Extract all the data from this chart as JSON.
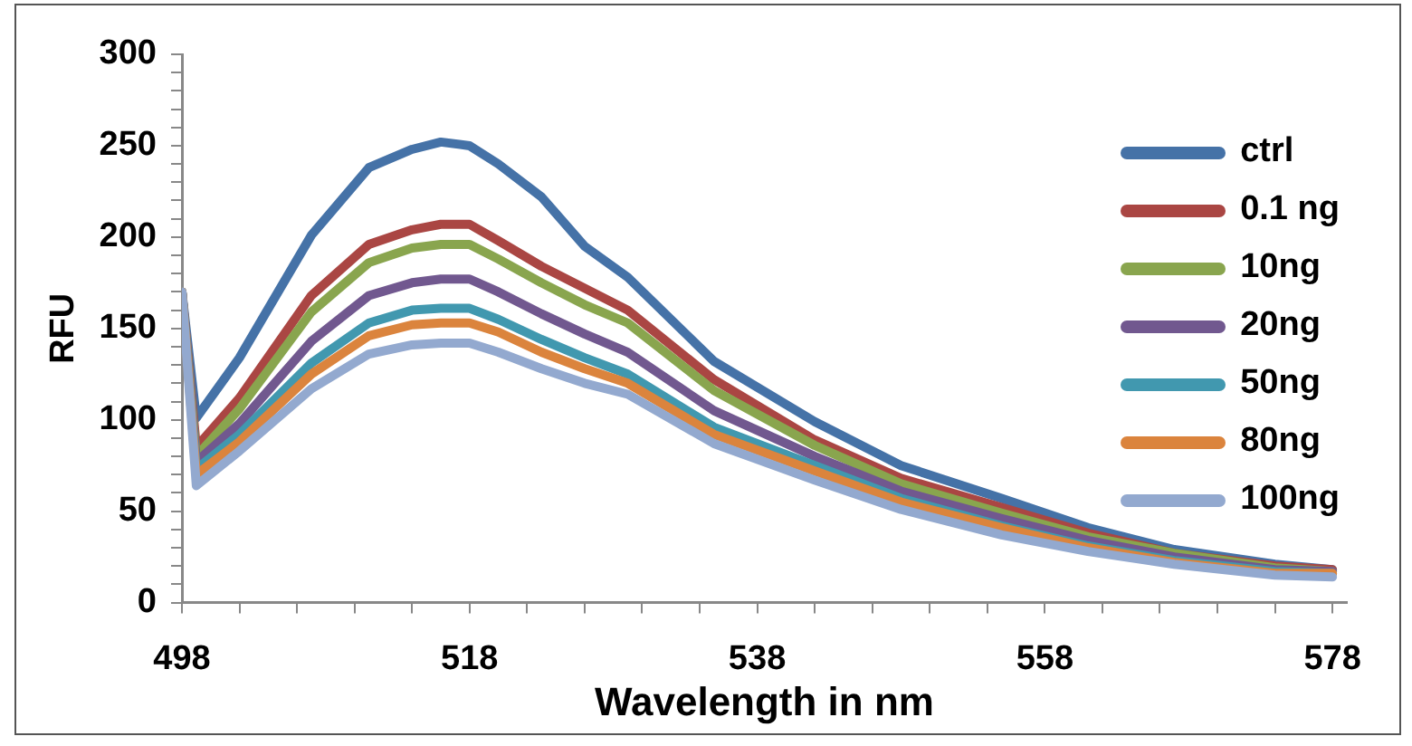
{
  "chart_data": {
    "type": "line",
    "xlabel": "Wavelength in nm",
    "ylabel": "RFU",
    "x": [
      498,
      499,
      502,
      507,
      511,
      514,
      516,
      518,
      520,
      523,
      526,
      529,
      535,
      542,
      548,
      555,
      561,
      567,
      574,
      578
    ],
    "series": [
      {
        "name": "ctrl",
        "color": "#4572a7",
        "values": [
          170,
          101,
          134,
          201,
          238,
          248,
          252,
          250,
          240,
          222,
          195,
          178,
          132,
          99,
          75,
          57,
          41,
          29,
          21,
          18
        ]
      },
      {
        "name": "0.1 ng",
        "color": "#aa4643",
        "values": [
          170,
          85,
          112,
          168,
          196,
          204,
          207,
          207,
          198,
          184,
          172,
          160,
          122,
          89,
          68,
          52,
          38,
          27,
          20,
          18
        ]
      },
      {
        "name": "10ng",
        "color": "#89a54e",
        "values": [
          170,
          80,
          106,
          159,
          186,
          194,
          196,
          196,
          188,
          175,
          163,
          153,
          116,
          86,
          65,
          49,
          36,
          27,
          19,
          17
        ]
      },
      {
        "name": "20ng",
        "color": "#71588f",
        "values": [
          170,
          77,
          98,
          143,
          168,
          175,
          177,
          177,
          170,
          158,
          147,
          137,
          105,
          80,
          61,
          46,
          34,
          25,
          18,
          17
        ]
      },
      {
        "name": "50ng",
        "color": "#4198af",
        "values": [
          170,
          73,
          92,
          131,
          153,
          160,
          161,
          161,
          155,
          144,
          134,
          125,
          96,
          75,
          57,
          42,
          31,
          23,
          17,
          16
        ]
      },
      {
        "name": "80ng",
        "color": "#db843d",
        "values": [
          170,
          70,
          88,
          125,
          146,
          152,
          153,
          153,
          148,
          137,
          128,
          120,
          92,
          72,
          55,
          41,
          30,
          22,
          16,
          16
        ]
      },
      {
        "name": "100ng",
        "color": "#93a9cf",
        "values": [
          170,
          64,
          83,
          117,
          136,
          141,
          142,
          142,
          137,
          128,
          120,
          114,
          87,
          67,
          51,
          37,
          28,
          21,
          15,
          14
        ]
      }
    ],
    "xlim": [
      498,
      579
    ],
    "xticks": [
      498,
      {
        "value": 502,
        "label": null
      },
      {
        "value": 506,
        "label": null
      },
      {
        "value": 510,
        "label": null
      },
      {
        "value": 514,
        "label": null
      },
      518,
      {
        "value": 522,
        "label": null
      },
      {
        "value": 526,
        "label": null
      },
      {
        "value": 530,
        "label": null
      },
      {
        "value": 534,
        "label": null
      },
      538,
      {
        "value": 542,
        "label": null
      },
      {
        "value": 546,
        "label": null
      },
      {
        "value": 550,
        "label": null
      },
      {
        "value": 554,
        "label": null
      },
      558,
      {
        "value": 562,
        "label": null
      },
      {
        "value": 566,
        "label": null
      },
      {
        "value": 570,
        "label": null
      },
      {
        "value": 574,
        "label": null
      },
      578
    ],
    "ylim": [
      0,
      300
    ],
    "yticks": [
      0,
      {
        "value": 10,
        "label": null
      },
      {
        "value": 20,
        "label": null
      },
      {
        "value": 30,
        "label": null
      },
      {
        "value": 40,
        "label": null
      },
      50,
      {
        "value": 60,
        "label": null
      },
      {
        "value": 70,
        "label": null
      },
      {
        "value": 80,
        "label": null
      },
      {
        "value": 90,
        "label": null
      },
      100,
      {
        "value": 110,
        "label": null
      },
      {
        "value": 120,
        "label": null
      },
      {
        "value": 130,
        "label": null
      },
      {
        "value": 140,
        "label": null
      },
      150,
      {
        "value": 160,
        "label": null
      },
      {
        "value": 170,
        "label": null
      },
      {
        "value": 180,
        "label": null
      },
      {
        "value": 190,
        "label": null
      },
      200,
      {
        "value": 210,
        "label": null
      },
      {
        "value": 220,
        "label": null
      },
      {
        "value": 230,
        "label": null
      },
      {
        "value": 240,
        "label": null
      },
      250,
      {
        "value": 260,
        "label": null
      },
      {
        "value": 270,
        "label": null
      },
      {
        "value": 280,
        "label": null
      },
      {
        "value": 290,
        "label": null
      },
      300
    ],
    "grid": false,
    "legend": "top right",
    "marker": "none",
    "line_style": "solid"
  }
}
